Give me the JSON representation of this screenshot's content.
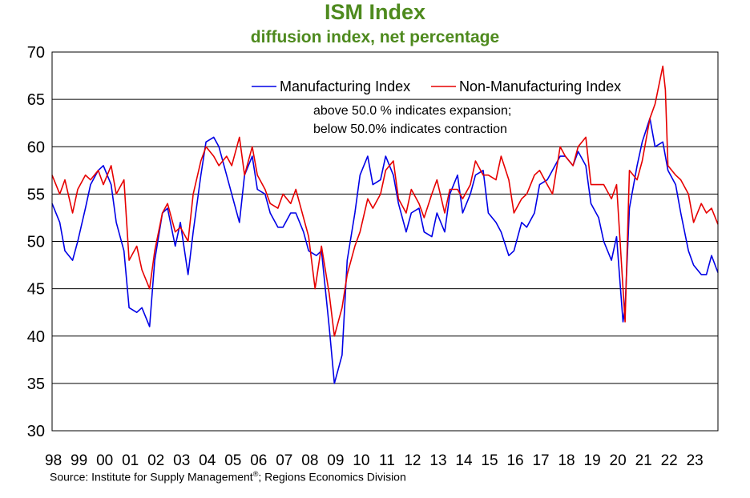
{
  "title": "ISM Index",
  "subtitle": "diffusion index, net percentage",
  "annotation_line1": "above 50.0 % indicates expansion;",
  "annotation_line2": "below 50.0% indicates contraction",
  "source_text": "Source: Institute for Supply Management",
  "source_reg": "®",
  "source_tail": "; Regions Economics Division",
  "colors": {
    "title": "#4e8a1e",
    "manufacturing": "#0000e6",
    "non_manufacturing": "#e60000"
  },
  "chart_data": {
    "type": "line",
    "title": "ISM Index",
    "subtitle": "diffusion index, net percentage",
    "xlabel": "",
    "ylabel": "",
    "ylim": [
      30,
      70
    ],
    "yticks": [
      30,
      35,
      40,
      45,
      50,
      55,
      60,
      65,
      70
    ],
    "xlim": [
      1998.0,
      2023.95
    ],
    "xtick_labels": [
      "98",
      "99",
      "00",
      "01",
      "02",
      "03",
      "04",
      "05",
      "06",
      "07",
      "08",
      "09",
      "10",
      "11",
      "12",
      "13",
      "14",
      "15",
      "16",
      "17",
      "18",
      "19",
      "20",
      "21",
      "22",
      "23"
    ],
    "grid": "horizontal",
    "legend_position": "top",
    "series": [
      {
        "name": "Manufacturing Index",
        "color": "#0000e6",
        "x": [
          1998.0,
          1998.3,
          1998.5,
          1998.8,
          1999.0,
          1999.3,
          1999.5,
          1999.8,
          2000.0,
          2000.3,
          2000.5,
          2000.8,
          2001.0,
          2001.3,
          2001.5,
          2001.8,
          2002.0,
          2002.3,
          2002.5,
          2002.8,
          2003.0,
          2003.3,
          2003.5,
          2003.8,
          2004.0,
          2004.3,
          2004.5,
          2004.8,
          2005.0,
          2005.3,
          2005.5,
          2005.8,
          2006.0,
          2006.3,
          2006.5,
          2006.8,
          2007.0,
          2007.3,
          2007.5,
          2007.8,
          2008.0,
          2008.3,
          2008.5,
          2008.8,
          2009.0,
          2009.3,
          2009.5,
          2009.8,
          2010.0,
          2010.3,
          2010.5,
          2010.8,
          2011.0,
          2011.3,
          2011.5,
          2011.8,
          2012.0,
          2012.3,
          2012.5,
          2012.8,
          2013.0,
          2013.3,
          2013.5,
          2013.8,
          2014.0,
          2014.3,
          2014.5,
          2014.8,
          2015.0,
          2015.3,
          2015.5,
          2015.8,
          2016.0,
          2016.3,
          2016.5,
          2016.8,
          2017.0,
          2017.3,
          2017.5,
          2017.8,
          2018.0,
          2018.3,
          2018.5,
          2018.8,
          2019.0,
          2019.3,
          2019.5,
          2019.8,
          2020.0,
          2020.25,
          2020.33,
          2020.5,
          2020.8,
          2021.0,
          2021.3,
          2021.5,
          2021.8,
          2022.0,
          2022.3,
          2022.5,
          2022.8,
          2023.0,
          2023.3,
          2023.5,
          2023.7,
          2023.95
        ],
        "values": [
          54.0,
          52.0,
          49.0,
          48.0,
          50.0,
          53.5,
          56.0,
          57.5,
          58.0,
          56.0,
          52.0,
          49.0,
          43.0,
          42.5,
          43.0,
          41.0,
          48.0,
          53.0,
          53.5,
          49.5,
          52.0,
          46.5,
          51.0,
          57.0,
          60.5,
          61.0,
          60.0,
          57.0,
          55.0,
          52.0,
          57.0,
          59.0,
          55.5,
          55.0,
          53.0,
          51.5,
          51.5,
          53.0,
          53.0,
          51.0,
          49.0,
          48.5,
          49.0,
          41.0,
          35.0,
          38.0,
          48.0,
          53.0,
          57.0,
          59.0,
          56.0,
          56.5,
          59.0,
          57.0,
          54.0,
          51.0,
          53.0,
          53.5,
          51.0,
          50.5,
          53.0,
          51.0,
          55.0,
          57.0,
          53.0,
          55.0,
          57.0,
          57.5,
          53.0,
          52.0,
          51.0,
          48.5,
          49.0,
          52.0,
          51.5,
          53.0,
          56.0,
          56.5,
          57.5,
          59.0,
          59.0,
          58.0,
          59.5,
          58.0,
          54.0,
          52.5,
          50.0,
          48.0,
          50.5,
          41.5,
          43.0,
          53.5,
          58.0,
          60.5,
          63.0,
          60.0,
          60.5,
          57.5,
          56.0,
          53.0,
          49.0,
          47.5,
          46.5,
          46.5,
          48.5,
          46.7
        ]
      },
      {
        "name": "Non-Manufacturing Index",
        "color": "#e60000",
        "x": [
          1998.0,
          1998.3,
          1998.5,
          1998.8,
          1999.0,
          1999.3,
          1999.5,
          1999.8,
          2000.0,
          2000.3,
          2000.5,
          2000.8,
          2001.0,
          2001.3,
          2001.5,
          2001.8,
          2002.0,
          2002.3,
          2002.5,
          2002.8,
          2003.0,
          2003.3,
          2003.5,
          2003.8,
          2004.0,
          2004.3,
          2004.5,
          2004.8,
          2005.0,
          2005.3,
          2005.5,
          2005.8,
          2006.0,
          2006.3,
          2006.5,
          2006.8,
          2007.0,
          2007.3,
          2007.5,
          2007.8,
          2008.0,
          2008.25,
          2008.5,
          2008.8,
          2009.0,
          2009.3,
          2009.5,
          2009.8,
          2010.0,
          2010.3,
          2010.5,
          2010.8,
          2011.0,
          2011.3,
          2011.5,
          2011.8,
          2012.0,
          2012.3,
          2012.5,
          2012.8,
          2013.0,
          2013.3,
          2013.5,
          2013.8,
          2014.0,
          2014.3,
          2014.5,
          2014.8,
          2015.0,
          2015.3,
          2015.5,
          2015.8,
          2016.0,
          2016.3,
          2016.5,
          2016.8,
          2017.0,
          2017.3,
          2017.5,
          2017.8,
          2018.0,
          2018.3,
          2018.5,
          2018.8,
          2019.0,
          2019.3,
          2019.5,
          2019.8,
          2020.0,
          2020.33,
          2020.5,
          2020.8,
          2021.0,
          2021.3,
          2021.5,
          2021.8,
          2021.9,
          2022.0,
          2022.3,
          2022.5,
          2022.8,
          2023.0,
          2023.3,
          2023.5,
          2023.7,
          2023.95
        ],
        "values": [
          57.0,
          55.0,
          56.5,
          53.0,
          55.5,
          57.0,
          56.5,
          57.5,
          56.0,
          58.0,
          55.0,
          56.5,
          48.0,
          49.5,
          47.0,
          45.0,
          49.0,
          53.0,
          54.0,
          51.0,
          51.5,
          50.0,
          55.0,
          58.5,
          60.0,
          59.0,
          58.0,
          59.0,
          58.0,
          61.0,
          57.0,
          60.0,
          57.0,
          55.5,
          54.0,
          53.5,
          55.0,
          54.0,
          55.5,
          52.5,
          50.5,
          45.0,
          49.5,
          44.5,
          40.0,
          43.0,
          46.5,
          49.5,
          51.0,
          54.5,
          53.5,
          55.0,
          57.5,
          58.5,
          54.5,
          53.0,
          55.5,
          54.0,
          52.5,
          55.0,
          56.5,
          53.0,
          55.5,
          55.5,
          54.5,
          56.0,
          58.5,
          57.0,
          57.0,
          56.5,
          59.0,
          56.5,
          53.0,
          54.5,
          55.0,
          57.0,
          57.5,
          56.0,
          55.0,
          60.0,
          59.0,
          58.0,
          60.0,
          61.0,
          56.0,
          56.0,
          56.0,
          54.5,
          56.0,
          41.5,
          57.5,
          56.5,
          58.5,
          63.0,
          64.5,
          68.5,
          66.0,
          58.0,
          57.0,
          56.5,
          55.0,
          52.0,
          54.0,
          53.0,
          53.5,
          51.8
        ]
      }
    ]
  }
}
